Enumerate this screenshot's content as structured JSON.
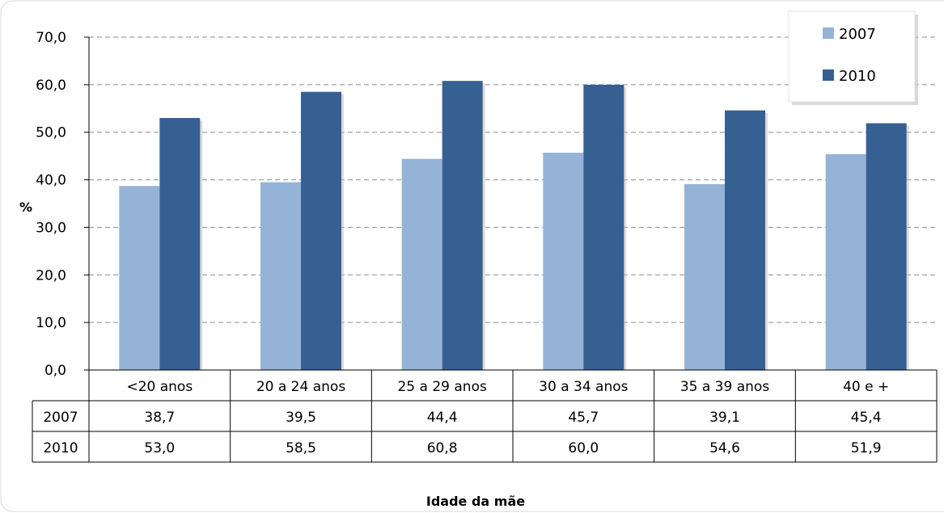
{
  "chart_data": {
    "type": "bar",
    "title": "",
    "xlabel": "Idade da mãe",
    "ylabel": "%",
    "ylim": [
      0,
      70
    ],
    "yticks": [
      "0,0",
      "10,0",
      "20,0",
      "30,0",
      "40,0",
      "50,0",
      "60,0",
      "70,0"
    ],
    "categories": [
      "<20 anos",
      "20 a 24 anos",
      "25 a 29 anos",
      "30 a 34 anos",
      "35 a 39 anos",
      "40 e +"
    ],
    "series": [
      {
        "name": "2007",
        "values": [
          38.7,
          39.5,
          44.4,
          45.7,
          39.1,
          45.4
        ],
        "labels": [
          "38,7",
          "39,5",
          "44,4",
          "45,7",
          "39,1",
          "45,4"
        ],
        "color": "#95B3D7"
      },
      {
        "name": "2010",
        "values": [
          53.0,
          58.5,
          60.8,
          60.0,
          54.6,
          51.9
        ],
        "labels": [
          "53,0",
          "58,5",
          "60,8",
          "60,0",
          "54,6",
          "51,9"
        ],
        "color": "#376092"
      }
    ],
    "grid": "horizontal dashed",
    "legend_position": "top-right",
    "data_table": true
  }
}
